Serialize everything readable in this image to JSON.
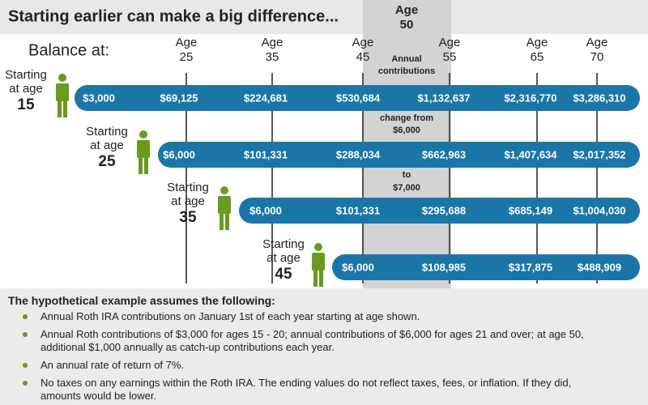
{
  "title": "Starting earlier can make a big difference...",
  "highlight": {
    "word": "Age",
    "number": "50"
  },
  "balance_label": "Balance at:",
  "ages": [
    {
      "word": "Age",
      "number": "25"
    },
    {
      "word": "Age",
      "number": "35"
    },
    {
      "word": "Age",
      "number": "45"
    },
    {
      "word": "Age",
      "number": "55"
    },
    {
      "word": "Age",
      "number": "65"
    },
    {
      "word": "Age",
      "number": "70"
    }
  ],
  "notes": [
    [
      "Annual",
      "contributions"
    ],
    [
      "change from",
      "$6,000"
    ],
    [
      "to",
      "$7,000"
    ]
  ],
  "rows": [
    {
      "line1": "Starting",
      "line2": "at age",
      "age": "15",
      "values": [
        "$3,000",
        "$69,125",
        "$224,681",
        "$530,684",
        "$1,132,637",
        "$2,316,770",
        "$3,286,310"
      ]
    },
    {
      "line1": "Starting",
      "line2": "at age",
      "age": "25",
      "values": [
        "$6,000",
        "$101,331",
        "$288,034",
        "$662,963",
        "$1,407,634",
        "$2,017,352"
      ]
    },
    {
      "line1": "Starting",
      "line2": "at age",
      "age": "35",
      "values": [
        "$6,000",
        "$101,331",
        "$295,688",
        "$685,149",
        "$1,004,030"
      ]
    },
    {
      "line1": "Starting",
      "line2": "at age",
      "age": "45",
      "values": [
        "$6,000",
        "$108,985",
        "$317,875",
        "$488,909"
      ]
    }
  ],
  "footnote": {
    "heading": "The hypothetical example assumes the following:",
    "bullets": [
      "Annual Roth IRA contributions on January 1st of each year starting at age shown.",
      "Annual Roth contributions of $3,000 for ages 15 - 20; annual contributions of $6,000 for ages 21 and over; at age 50, additional $1,000 annually as catch-up contributions each year.",
      "An annual rate of return of 7%.",
      "No taxes on any earnings within the Roth IRA. The ending values do not reflect taxes, fees, or inflation. If they did, amounts would be lower."
    ]
  }
}
